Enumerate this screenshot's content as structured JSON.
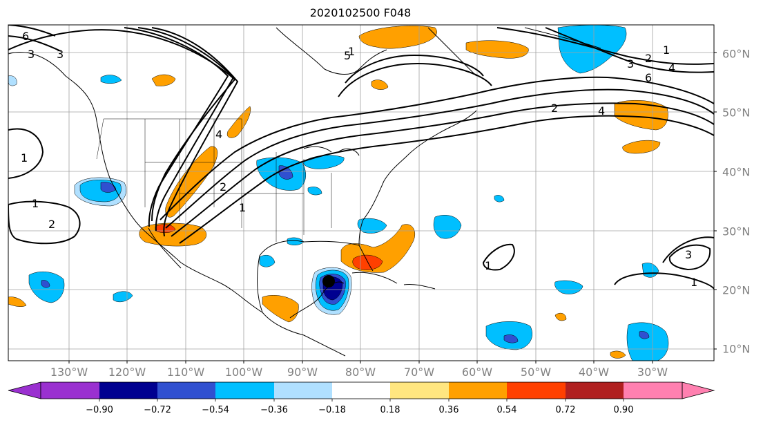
{
  "title": "2020102500 F048",
  "map": {
    "longitude_labels": [
      "130°W",
      "120°W",
      "110°W",
      "100°W",
      "90°W",
      "80°W",
      "70°W",
      "60°W",
      "50°W",
      "40°W",
      "30°W"
    ],
    "latitude_labels": [
      "60°N",
      "50°N",
      "40°N",
      "30°N",
      "20°N",
      "10°N"
    ],
    "contour_labels": [
      "6",
      "3",
      "3",
      "4",
      "1",
      "2",
      "1",
      "1",
      "5",
      "1",
      "2",
      "3",
      "4",
      "6",
      "1",
      "2",
      "4",
      "2",
      "1",
      "3",
      "1"
    ],
    "colors": {
      "contour": "#000000",
      "gridline": "#a0a0a0",
      "coastline": "#000000"
    },
    "storm_marker": "black-filled-circle"
  },
  "colorbar": {
    "tick_labels": [
      "−0.90",
      "−0.72",
      "−0.54",
      "−0.36",
      "−0.18",
      "0.18",
      "0.36",
      "0.54",
      "0.72",
      "0.90"
    ],
    "colors": [
      "#9a30d0",
      "#000090",
      "#3050d0",
      "#00bfff",
      "#b0e0ff",
      "#ffffff",
      "#ffe680",
      "#ffa000",
      "#ff4000",
      "#b02020",
      "#ff80b0"
    ],
    "extend": "both"
  }
}
